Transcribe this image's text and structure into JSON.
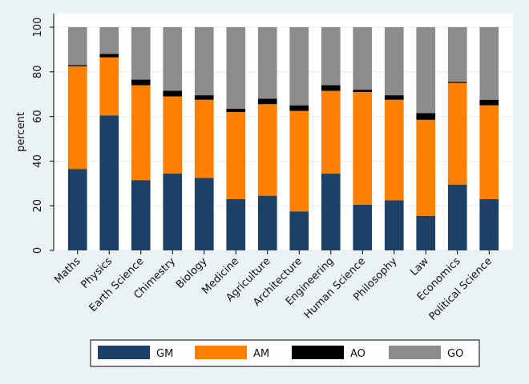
{
  "chart_data": {
    "type": "bar",
    "stacked": true,
    "title": "",
    "xlabel": "",
    "ylabel": "percent",
    "ylim": [
      0,
      100
    ],
    "yticks": [
      0,
      20,
      40,
      60,
      80,
      100
    ],
    "grid": true,
    "legend_position": "bottom",
    "categories": [
      "Maths",
      "Physics",
      "Earth Science",
      "Chimestry",
      "Biology",
      "Medicine",
      "Agriculture",
      "Architecture",
      "Engineering",
      "Human Science",
      "Philosophy",
      "Law",
      "Economics",
      "Political Science"
    ],
    "series": [
      {
        "name": "GM",
        "color": "#1b4266",
        "values": [
          36.5,
          60.5,
          31.5,
          34.5,
          32.5,
          23.0,
          24.5,
          17.5,
          34.5,
          20.5,
          22.5,
          15.5,
          29.5,
          23.0
        ]
      },
      {
        "name": "AM",
        "color": "#ff8000",
        "values": [
          46.0,
          26.0,
          42.5,
          34.5,
          35.0,
          39.0,
          41.0,
          45.0,
          37.0,
          50.5,
          45.0,
          43.0,
          45.5,
          42.0
        ]
      },
      {
        "name": "AO",
        "color": "#000000",
        "values": [
          0.5,
          1.5,
          2.5,
          2.5,
          2.0,
          1.5,
          2.5,
          2.5,
          2.5,
          1.0,
          2.0,
          3.0,
          0.5,
          2.5
        ]
      },
      {
        "name": "GO",
        "color": "#8c8c8c",
        "values": [
          17.0,
          12.0,
          23.5,
          28.5,
          30.5,
          36.5,
          32.0,
          35.0,
          26.0,
          28.0,
          30.5,
          38.5,
          24.5,
          32.5
        ]
      }
    ]
  }
}
